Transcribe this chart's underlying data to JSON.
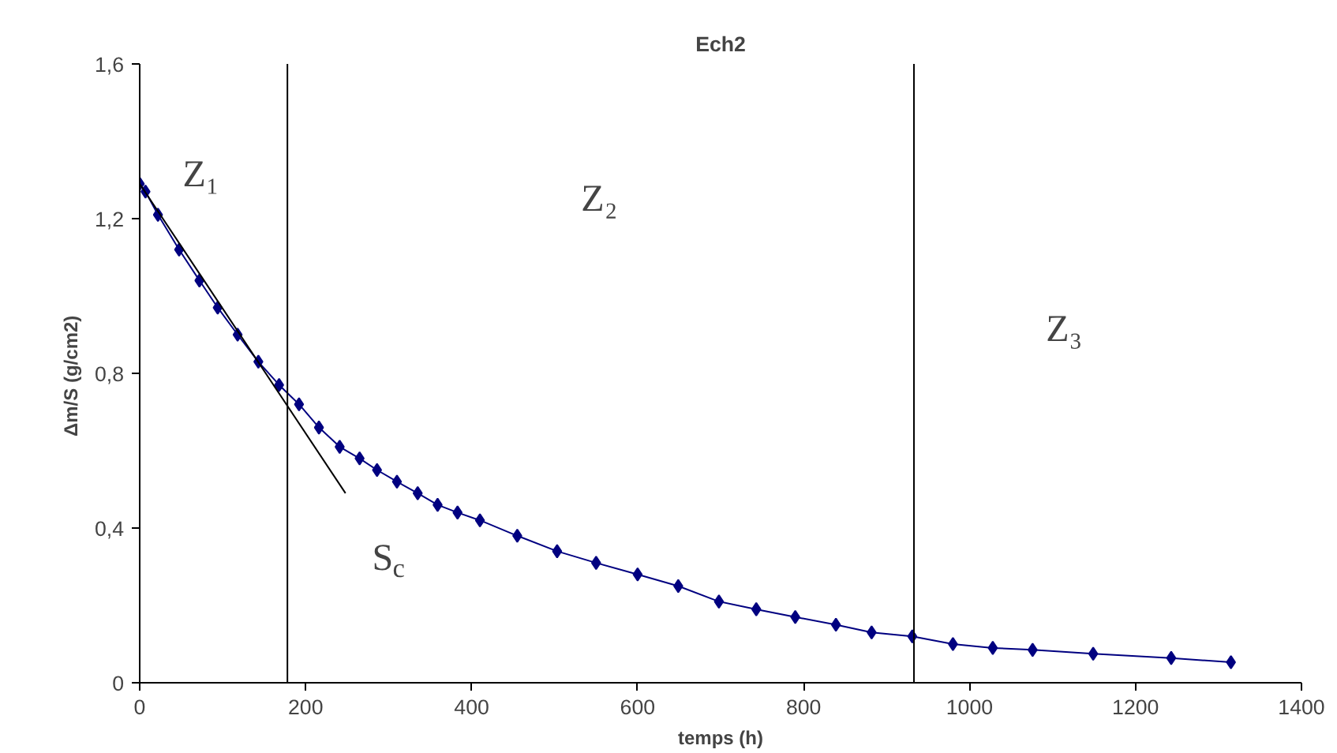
{
  "chart_data": {
    "type": "line",
    "title": "Ech2",
    "xlabel": "temps (h)",
    "ylabel": "Δm/S  (g/cm2)",
    "xlim": [
      0,
      1400
    ],
    "ylim": [
      0,
      1.6
    ],
    "xticks": [
      0,
      200,
      400,
      600,
      800,
      1000,
      1200,
      1400
    ],
    "yticks": [
      0,
      {
        "value": 0.4,
        "label": "0,4"
      },
      {
        "value": 0.8,
        "label": "0,8"
      },
      {
        "value": 1.2,
        "label": "1,2"
      },
      {
        "value": 1.6,
        "label": "1,6"
      }
    ],
    "grid": false,
    "marker": "diamond",
    "line_style": "solid",
    "series": [
      {
        "color": "#000080",
        "x": [
          0,
          7,
          22,
          47.5,
          72,
          94,
          118,
          143,
          168,
          192,
          216,
          241,
          265,
          286,
          310,
          335,
          359,
          383,
          410,
          455,
          503,
          550,
          600,
          649,
          698,
          743,
          790,
          839,
          882,
          931,
          980,
          1028,
          1076,
          1149,
          1243,
          1315
        ],
        "values": [
          1.29,
          1.27,
          1.21,
          1.12,
          1.04,
          0.97,
          0.9,
          0.83,
          0.77,
          0.72,
          0.66,
          0.61,
          0.58,
          0.55,
          0.52,
          0.49,
          0.46,
          0.44,
          0.42,
          0.38,
          0.34,
          0.31,
          0.28,
          0.25,
          0.21,
          0.19,
          0.17,
          0.15,
          0.13,
          0.12,
          0.1,
          0.09,
          0.085,
          0.075,
          0.064,
          0.053
        ]
      },
      {
        "type": "line",
        "color": "#000000",
        "marker": "none",
        "x": [
          0,
          248
        ],
        "values": [
          1.29,
          0.49
        ]
      }
    ],
    "ref_lines": [
      {
        "axis": "x",
        "value": 178,
        "color": "#000000"
      },
      {
        "axis": "x",
        "value": 933,
        "color": "#000000"
      }
    ],
    "annotations": [
      "Z₁",
      "Z₂",
      "Z₃",
      "S$_{c}$"
    ]
  }
}
